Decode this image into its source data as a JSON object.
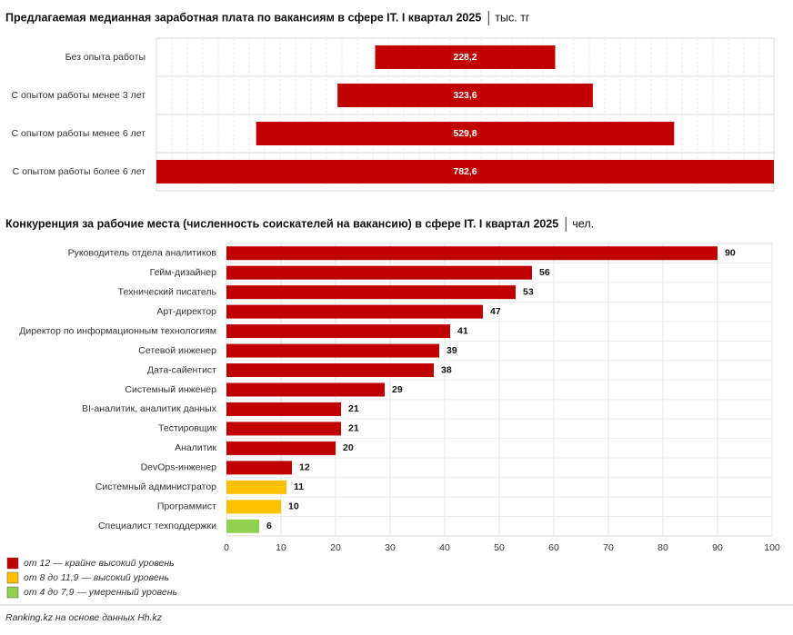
{
  "chart_data": [
    {
      "type": "funnel",
      "title": "Предлагаемая медианная заработная плата по вакансиям в сфере IT. I квартал 2025",
      "unit": "тыс. тг",
      "categories": [
        "Без опыта работы",
        "С опытом работы менее 3 лет",
        "С опытом работы менее 6 лет",
        "С опытом работы более 6 лет"
      ],
      "values": [
        228.2,
        323.6,
        529.8,
        782.6
      ],
      "value_labels": [
        "228,2",
        "323,6",
        "529,8",
        "782,6"
      ],
      "color": "#c00000"
    },
    {
      "type": "hbar",
      "title": "Конкуренция за рабочие места (численность соискателей на вакансию) в сфере IT. I квартал 2025",
      "unit": "чел.",
      "categories": [
        "Руководитель отдела аналитиков",
        "Гейм-дизайнер",
        "Технический писатель",
        "Арт-директор",
        "Директор по информационным технологиям",
        "Сетевой инженер",
        "Дата-сайентист",
        "Системный инженер",
        "BI-аналитик, аналитик данных",
        "Тестировщик",
        "Аналитик",
        "DevOps-инженер",
        "Системный администратор",
        "Программист",
        "Специалист техподдержки"
      ],
      "values": [
        90,
        56,
        53,
        47,
        41,
        39,
        38,
        29,
        21,
        21,
        20,
        12,
        11,
        10,
        6
      ],
      "colors": [
        "#c00000",
        "#c00000",
        "#c00000",
        "#c00000",
        "#c00000",
        "#c00000",
        "#c00000",
        "#c00000",
        "#c00000",
        "#c00000",
        "#c00000",
        "#c00000",
        "#ffc000",
        "#ffc000",
        "#92d050"
      ],
      "xlim": [
        0,
        100
      ],
      "xticks": [
        0,
        10,
        20,
        30,
        40,
        50,
        60,
        70,
        80,
        90,
        100
      ],
      "grid": true,
      "legend": [
        {
          "label": "от 12 — крайне высокий уровень",
          "color": "#c00000"
        },
        {
          "label": "от 8 до 11,9 — высокий уровень",
          "color": "#ffc000"
        },
        {
          "label": "от 4 до 7,9 — умеренный уровень",
          "color": "#92d050"
        }
      ]
    }
  ],
  "source": "Ranking.kz на основе данных Hh.kz"
}
